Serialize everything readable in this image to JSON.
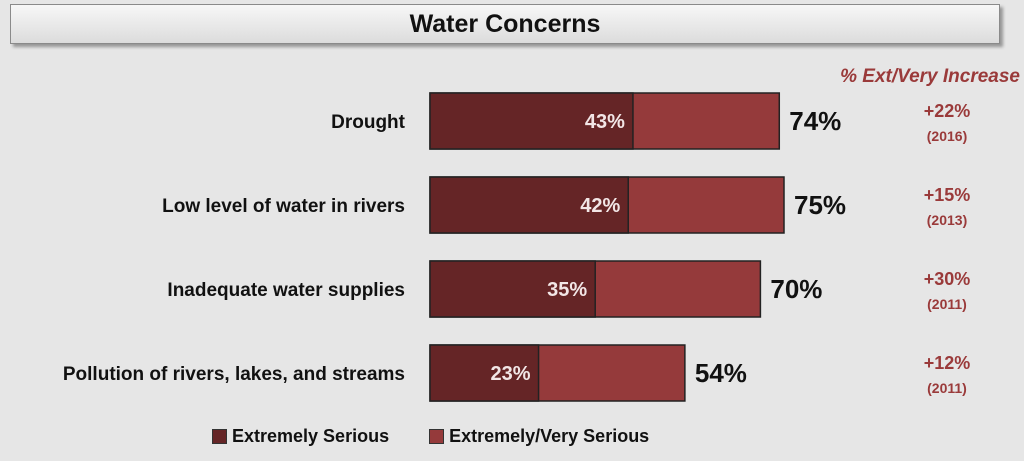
{
  "chart_data": {
    "type": "bar",
    "title": "Water Concerns",
    "categories": [
      "Drought",
      "Low level of water in rivers",
      "Inadequate water supplies",
      "Pollution of rivers, lakes, and streams"
    ],
    "series": [
      {
        "name": "Extremely Serious",
        "values": [
          43,
          42,
          35,
          23
        ],
        "color": "#652526"
      },
      {
        "name": "Extremely/Very Serious",
        "values": [
          74,
          75,
          70,
          54
        ],
        "color": "#953a3b"
      }
    ],
    "bar_labels": [
      "43%",
      "42%",
      "35%",
      "23%"
    ],
    "total_labels": [
      "74%",
      "75%",
      "70%",
      "54%"
    ],
    "increase_header": "% Ext/Very Increase",
    "increase": [
      "+22%",
      "+15%",
      "+30%",
      "+12%"
    ],
    "increase_years": [
      "(2016)",
      "(2013)",
      "(2011)",
      "(2011)"
    ],
    "increase_color": "#9a3a3a",
    "xlim": [
      0,
      100
    ],
    "grid": false,
    "legend_position": "bottom"
  }
}
